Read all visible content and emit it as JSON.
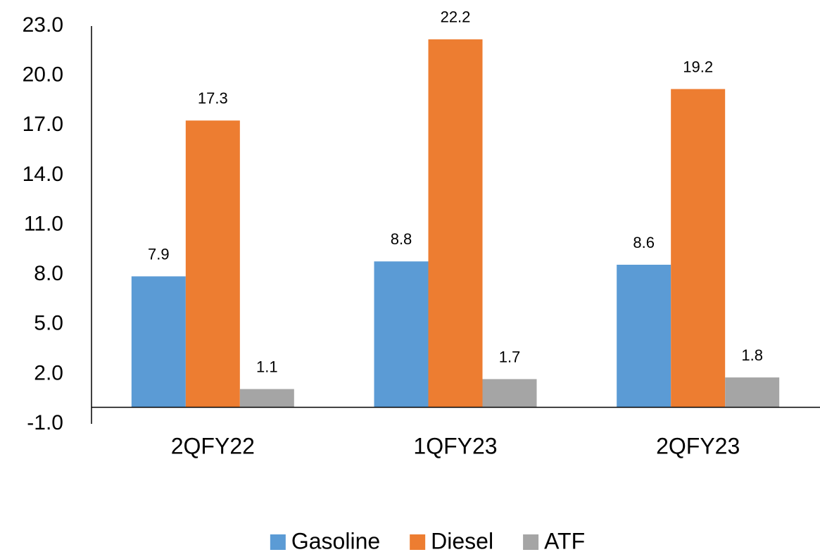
{
  "chart_data": {
    "type": "bar",
    "categories": [
      "2QFY22",
      "1QFY23",
      "2QFY23"
    ],
    "series": [
      {
        "name": "Gasoline",
        "color": "#5b9bd5",
        "values": [
          7.9,
          8.8,
          8.6
        ]
      },
      {
        "name": "Diesel",
        "color": "#ed7d31",
        "values": [
          17.3,
          22.2,
          19.2
        ]
      },
      {
        "name": "ATF",
        "color": "#a5a5a5",
        "values": [
          1.1,
          1.7,
          1.8
        ]
      }
    ],
    "ylim": [
      -1,
      23
    ],
    "yticks": [
      {
        "value": -1,
        "label": "-1.0"
      },
      {
        "value": 2,
        "label": "2.0"
      },
      {
        "value": 5,
        "label": "5.0"
      },
      {
        "value": 8,
        "label": "8.0"
      },
      {
        "value": 11,
        "label": "11.0"
      },
      {
        "value": 14,
        "label": "14.0"
      },
      {
        "value": 17,
        "label": "17.0"
      },
      {
        "value": 20,
        "label": "20.0"
      },
      {
        "value": 23,
        "label": "23.0"
      }
    ],
    "grid": false,
    "legend": "bottom"
  }
}
